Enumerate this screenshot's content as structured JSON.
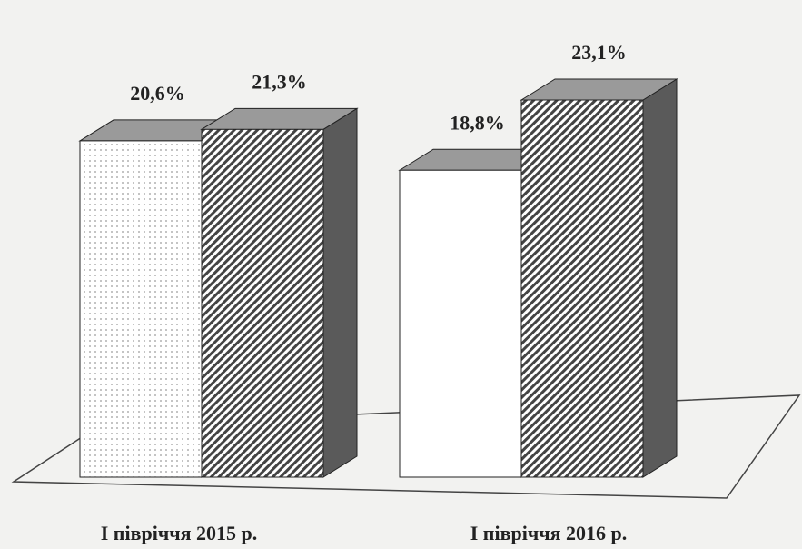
{
  "chart_data": {
    "type": "bar3d",
    "categories": [
      "I півріччя 2015 р.",
      "I півріччя 2016 р."
    ],
    "series": [
      {
        "color": "#ffffff",
        "values": [
          20.6,
          18.8
        ],
        "value_labels": [
          "20,6%",
          "18,8%"
        ]
      },
      {
        "color": "#ffffff",
        "values": [
          21.3,
          23.1
        ],
        "value_labels": [
          "21,3%",
          "23,1%"
        ]
      }
    ]
  }
}
